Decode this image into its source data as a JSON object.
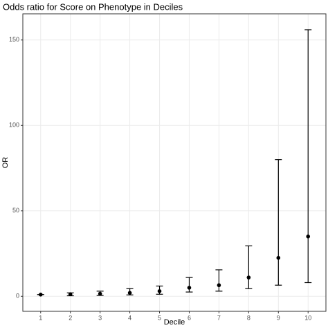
{
  "chart_data": {
    "type": "errorbar",
    "title": "Odds ratio for Score on Phenotype in Deciles",
    "x_label": "Decile",
    "y_label": "OR",
    "x": [
      1,
      2,
      3,
      4,
      5,
      6,
      7,
      8,
      9,
      10
    ],
    "values": [
      1,
      1.2,
      1.5,
      2,
      3,
      5,
      6.5,
      11,
      22.5,
      35
    ],
    "lower": [
      1,
      0.3,
      0.5,
      0.8,
      1.2,
      2.5,
      3,
      4.5,
      6.5,
      8
    ],
    "upper": [
      1,
      2,
      3,
      4.5,
      6,
      11,
      15.5,
      29.5,
      80,
      156
    ],
    "color": "#000000",
    "xlim": [
      0.4,
      10.6
    ],
    "xticks": [
      1,
      2,
      3,
      4,
      5,
      6,
      7,
      8,
      9,
      10
    ],
    "ylim": [
      -8.8,
      165.3
    ],
    "yticks": [
      0,
      50,
      100,
      150
    ],
    "grid": true
  }
}
